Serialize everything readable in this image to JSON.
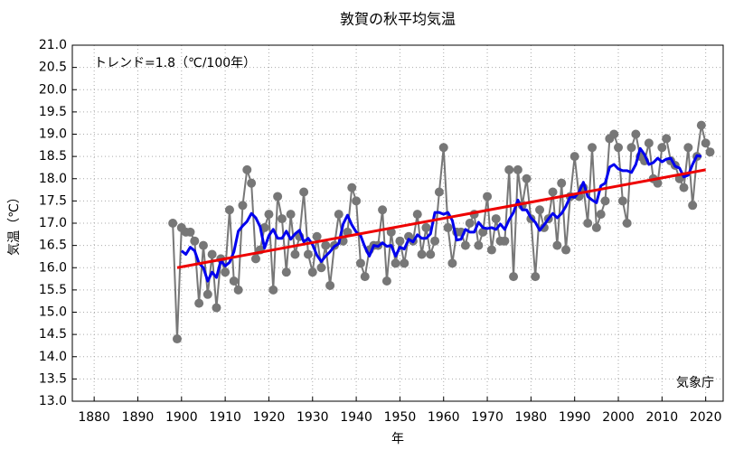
{
  "chart_data": {
    "type": "line",
    "title": "敦賀の秋平均気温",
    "ylabel": "気温（℃）",
    "xlabel": "年",
    "annotations": [
      "トレンド=1.8（℃/100年）",
      "気象庁"
    ],
    "x": [
      1898,
      1899,
      1900,
      1901,
      1902,
      1903,
      1904,
      1905,
      1906,
      1907,
      1908,
      1909,
      1910,
      1911,
      1912,
      1913,
      1914,
      1915,
      1916,
      1917,
      1918,
      1919,
      1920,
      1921,
      1922,
      1923,
      1924,
      1925,
      1926,
      1927,
      1928,
      1929,
      1930,
      1931,
      1932,
      1933,
      1934,
      1935,
      1936,
      1937,
      1938,
      1939,
      1940,
      1941,
      1942,
      1943,
      1944,
      1945,
      1946,
      1947,
      1948,
      1949,
      1950,
      1951,
      1952,
      1953,
      1954,
      1955,
      1956,
      1957,
      1958,
      1959,
      1960,
      1961,
      1962,
      1963,
      1964,
      1965,
      1966,
      1967,
      1968,
      1969,
      1970,
      1971,
      1972,
      1973,
      1974,
      1975,
      1976,
      1977,
      1978,
      1979,
      1980,
      1981,
      1982,
      1983,
      1984,
      1985,
      1986,
      1987,
      1988,
      1989,
      1990,
      1991,
      1992,
      1993,
      1994,
      1995,
      1996,
      1997,
      1998,
      1999,
      2000,
      2001,
      2002,
      2003,
      2004,
      2005,
      2006,
      2007,
      2008,
      2009,
      2010,
      2011,
      2012,
      2013,
      2014,
      2015,
      2016,
      2017,
      2018,
      2019,
      2020,
      2021
    ],
    "series": [
      {
        "color": "#777777",
        "markers": true,
        "values": [
          17.0,
          14.4,
          16.9,
          16.8,
          16.8,
          16.6,
          15.2,
          16.5,
          15.4,
          16.3,
          15.1,
          16.2,
          15.9,
          17.3,
          15.7,
          15.5,
          17.4,
          18.2,
          17.9,
          16.2,
          16.4,
          16.9,
          17.2,
          15.5,
          17.6,
          17.1,
          15.9,
          17.2,
          16.3,
          16.7,
          17.7,
          16.3,
          15.9,
          16.7,
          16.0,
          16.5,
          15.6,
          16.5,
          17.2,
          16.6,
          16.8,
          17.8,
          17.5,
          16.1,
          15.8,
          16.4,
          16.5,
          16.5,
          17.3,
          15.7,
          16.8,
          16.1,
          16.6,
          16.1,
          16.7,
          16.6,
          17.2,
          16.3,
          16.9,
          16.3,
          16.6,
          17.7,
          18.7,
          16.9,
          16.1,
          16.8,
          16.8,
          16.5,
          17.0,
          17.2,
          16.5,
          16.8,
          17.6,
          16.4,
          17.1,
          16.6,
          16.6,
          18.2,
          15.8,
          18.2,
          17.4,
          18.0,
          17.1,
          15.8,
          17.3,
          16.9,
          17.1,
          17.7,
          16.5,
          17.9,
          16.4,
          17.6,
          18.5,
          17.6,
          17.8,
          17.0,
          18.7,
          16.9,
          17.2,
          17.5,
          18.9,
          19.0,
          18.7,
          17.5,
          17.0,
          18.7,
          19.0,
          18.5,
          18.4,
          18.8,
          18.0,
          17.9,
          18.7,
          18.9,
          18.4,
          18.3,
          18.0,
          17.8,
          18.7,
          17.4,
          18.5,
          19.2,
          18.8,
          18.6
        ]
      },
      {
        "color": "#0000ee",
        "markers": false,
        "values": [
          null,
          null,
          16.38,
          16.3,
          16.46,
          16.38,
          16.1,
          16.0,
          15.7,
          15.9,
          15.78,
          16.16,
          16.04,
          16.12,
          16.36,
          16.82,
          16.94,
          17.04,
          17.22,
          17.12,
          16.92,
          16.44,
          16.72,
          16.86,
          16.66,
          16.66,
          16.82,
          16.64,
          16.76,
          16.84,
          16.58,
          16.66,
          16.52,
          16.28,
          16.14,
          16.26,
          16.36,
          16.48,
          16.54,
          16.98,
          17.18,
          16.96,
          16.8,
          16.72,
          16.46,
          16.26,
          16.5,
          16.48,
          16.56,
          16.48,
          16.5,
          16.26,
          16.46,
          16.42,
          16.64,
          16.58,
          16.74,
          16.66,
          16.66,
          16.76,
          17.24,
          17.24,
          17.2,
          17.24,
          17.06,
          16.62,
          16.64,
          16.86,
          16.8,
          16.8,
          17.02,
          16.9,
          16.88,
          16.9,
          16.86,
          16.98,
          16.86,
          17.08,
          17.24,
          17.52,
          17.3,
          17.3,
          17.12,
          17.02,
          16.84,
          16.96,
          17.1,
          17.22,
          17.12,
          17.22,
          17.38,
          17.6,
          17.58,
          17.7,
          17.92,
          17.6,
          17.52,
          17.46,
          17.84,
          17.9,
          18.26,
          18.32,
          18.22,
          18.18,
          18.18,
          18.14,
          18.32,
          18.68,
          18.54,
          18.32,
          18.36,
          18.46,
          18.38,
          18.44,
          18.46,
          18.28,
          18.24,
          18.04,
          18.08,
          18.32,
          18.52,
          18.5,
          null,
          null
        ]
      },
      {
        "color": "#ee0000",
        "markers": false,
        "x": [
          1899,
          2020
        ],
        "values": [
          16.0,
          18.2
        ]
      }
    ],
    "xlim": [
      1875,
      2024
    ],
    "ylim": [
      13.0,
      21.0
    ],
    "xticks": [
      1880,
      1890,
      1900,
      1910,
      1920,
      1930,
      1940,
      1950,
      1960,
      1970,
      1980,
      1990,
      2000,
      2010,
      2020
    ],
    "yticks": [
      {
        "value": 13.0,
        "label": "13.0"
      },
      {
        "value": 13.5,
        "label": "13.5"
      },
      {
        "value": 14.0,
        "label": "14.0"
      },
      {
        "value": 14.5,
        "label": "14.5"
      },
      {
        "value": 15.0,
        "label": "15.0"
      },
      {
        "value": 15.5,
        "label": "15.5"
      },
      {
        "value": 16.0,
        "label": "16.0"
      },
      {
        "value": 16.5,
        "label": "16.5"
      },
      {
        "value": 17.0,
        "label": "17.0"
      },
      {
        "value": 17.5,
        "label": "17.5"
      },
      {
        "value": 18.0,
        "label": "18.0"
      },
      {
        "value": 18.5,
        "label": "18.5"
      },
      {
        "value": 19.0,
        "label": "19.0"
      },
      {
        "value": 19.5,
        "label": "19.5"
      },
      {
        "value": 20.0,
        "label": "20.0"
      },
      {
        "value": 20.5,
        "label": "20.5"
      },
      {
        "value": 21.0,
        "label": "21.0"
      }
    ],
    "grid": true
  }
}
